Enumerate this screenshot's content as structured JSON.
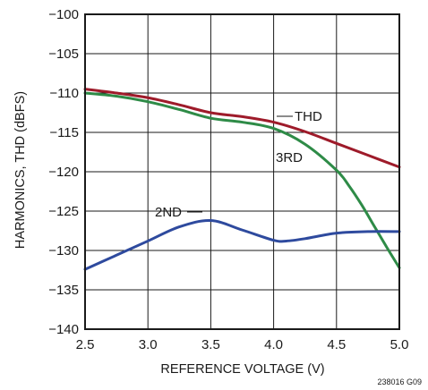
{
  "chart_data": {
    "type": "line",
    "xlabel": "REFERENCE VOLTAGE (V)",
    "ylabel": "HARMONICS, THD (dBFS)",
    "xlim": [
      2.5,
      5.0
    ],
    "ylim": [
      -140,
      -100
    ],
    "x_ticks": [
      2.5,
      3.0,
      3.5,
      4.0,
      4.5,
      5.0
    ],
    "x_tick_labels": [
      "2.5",
      "3.0",
      "3.5",
      "4.0",
      "4.5",
      "5.0"
    ],
    "y_ticks": [
      -100,
      -105,
      -110,
      -115,
      -120,
      -125,
      -130,
      -135,
      -140
    ],
    "y_tick_labels": [
      "−100",
      "−105",
      "−110",
      "−115",
      "−120",
      "−125",
      "−130",
      "−135",
      "−140"
    ],
    "grid": true,
    "series": [
      {
        "name": "THD",
        "color": "#9e1b2a",
        "x": [
          2.5,
          2.75,
          3.0,
          3.25,
          3.5,
          3.75,
          4.0,
          4.25,
          4.5,
          4.75,
          5.0
        ],
        "y": [
          -109.5,
          -110.0,
          -110.6,
          -111.5,
          -112.5,
          -113.0,
          -113.7,
          -114.9,
          -116.4,
          -117.9,
          -119.4
        ]
      },
      {
        "name": "3RD",
        "color": "#2e8b47",
        "x": [
          2.5,
          2.75,
          3.0,
          3.25,
          3.5,
          3.75,
          4.0,
          4.25,
          4.5,
          4.6,
          4.7,
          4.8,
          4.9,
          5.0
        ],
        "y": [
          -110.0,
          -110.4,
          -111.1,
          -112.1,
          -113.2,
          -113.7,
          -114.5,
          -116.5,
          -119.8,
          -121.8,
          -124.2,
          -126.9,
          -129.6,
          -132.2
        ]
      },
      {
        "name": "2ND",
        "color": "#2e4a9e",
        "x": [
          2.5,
          2.75,
          3.0,
          3.25,
          3.5,
          3.75,
          4.0,
          4.1,
          4.25,
          4.5,
          4.75,
          5.0
        ],
        "y": [
          -132.4,
          -130.6,
          -128.8,
          -127.0,
          -126.2,
          -127.4,
          -128.7,
          -128.8,
          -128.5,
          -127.8,
          -127.6,
          -127.6
        ]
      }
    ],
    "annotations": [
      "THD",
      "3RD",
      "2ND"
    ],
    "figure_id": "238016 G09"
  }
}
